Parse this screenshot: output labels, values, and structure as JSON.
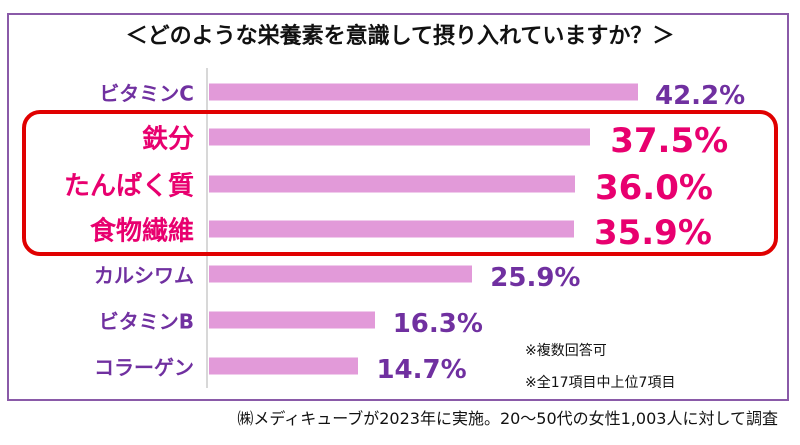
{
  "title": "＜どのような栄養素を意識して摂り入れていますか？＞",
  "notes": [
    "※複数回答可",
    "※全17項目中上位7項目"
  ],
  "source": "㈱メディキューブが2023年に実施。20～50代の女性1,003人に対して調査",
  "colors": {
    "bar": "#e29ad9",
    "label": "#7030a0",
    "highlight_label": "#e8006f",
    "highlight_box": "#e00000"
  },
  "chart_data": {
    "type": "bar",
    "orientation": "horizontal",
    "title": "＜どのような栄養素を意識して摂り入れていますか？＞",
    "categories": [
      "ビタミンC",
      "鉄分",
      "たんぱく質",
      "食物繊維",
      "カルシワム",
      "ビタミンB",
      "コラーゲン"
    ],
    "values": [
      42.2,
      37.5,
      36.0,
      35.9,
      25.9,
      16.3,
      14.7
    ],
    "value_labels": [
      "42.2%",
      "37.5%",
      "36.0%",
      "35.9%",
      "25.9%",
      "16.3%",
      "14.7%"
    ],
    "highlighted": [
      false,
      true,
      true,
      true,
      false,
      false,
      false
    ],
    "unit": "%",
    "xlim": [
      0,
      42.2
    ],
    "grid": false
  }
}
